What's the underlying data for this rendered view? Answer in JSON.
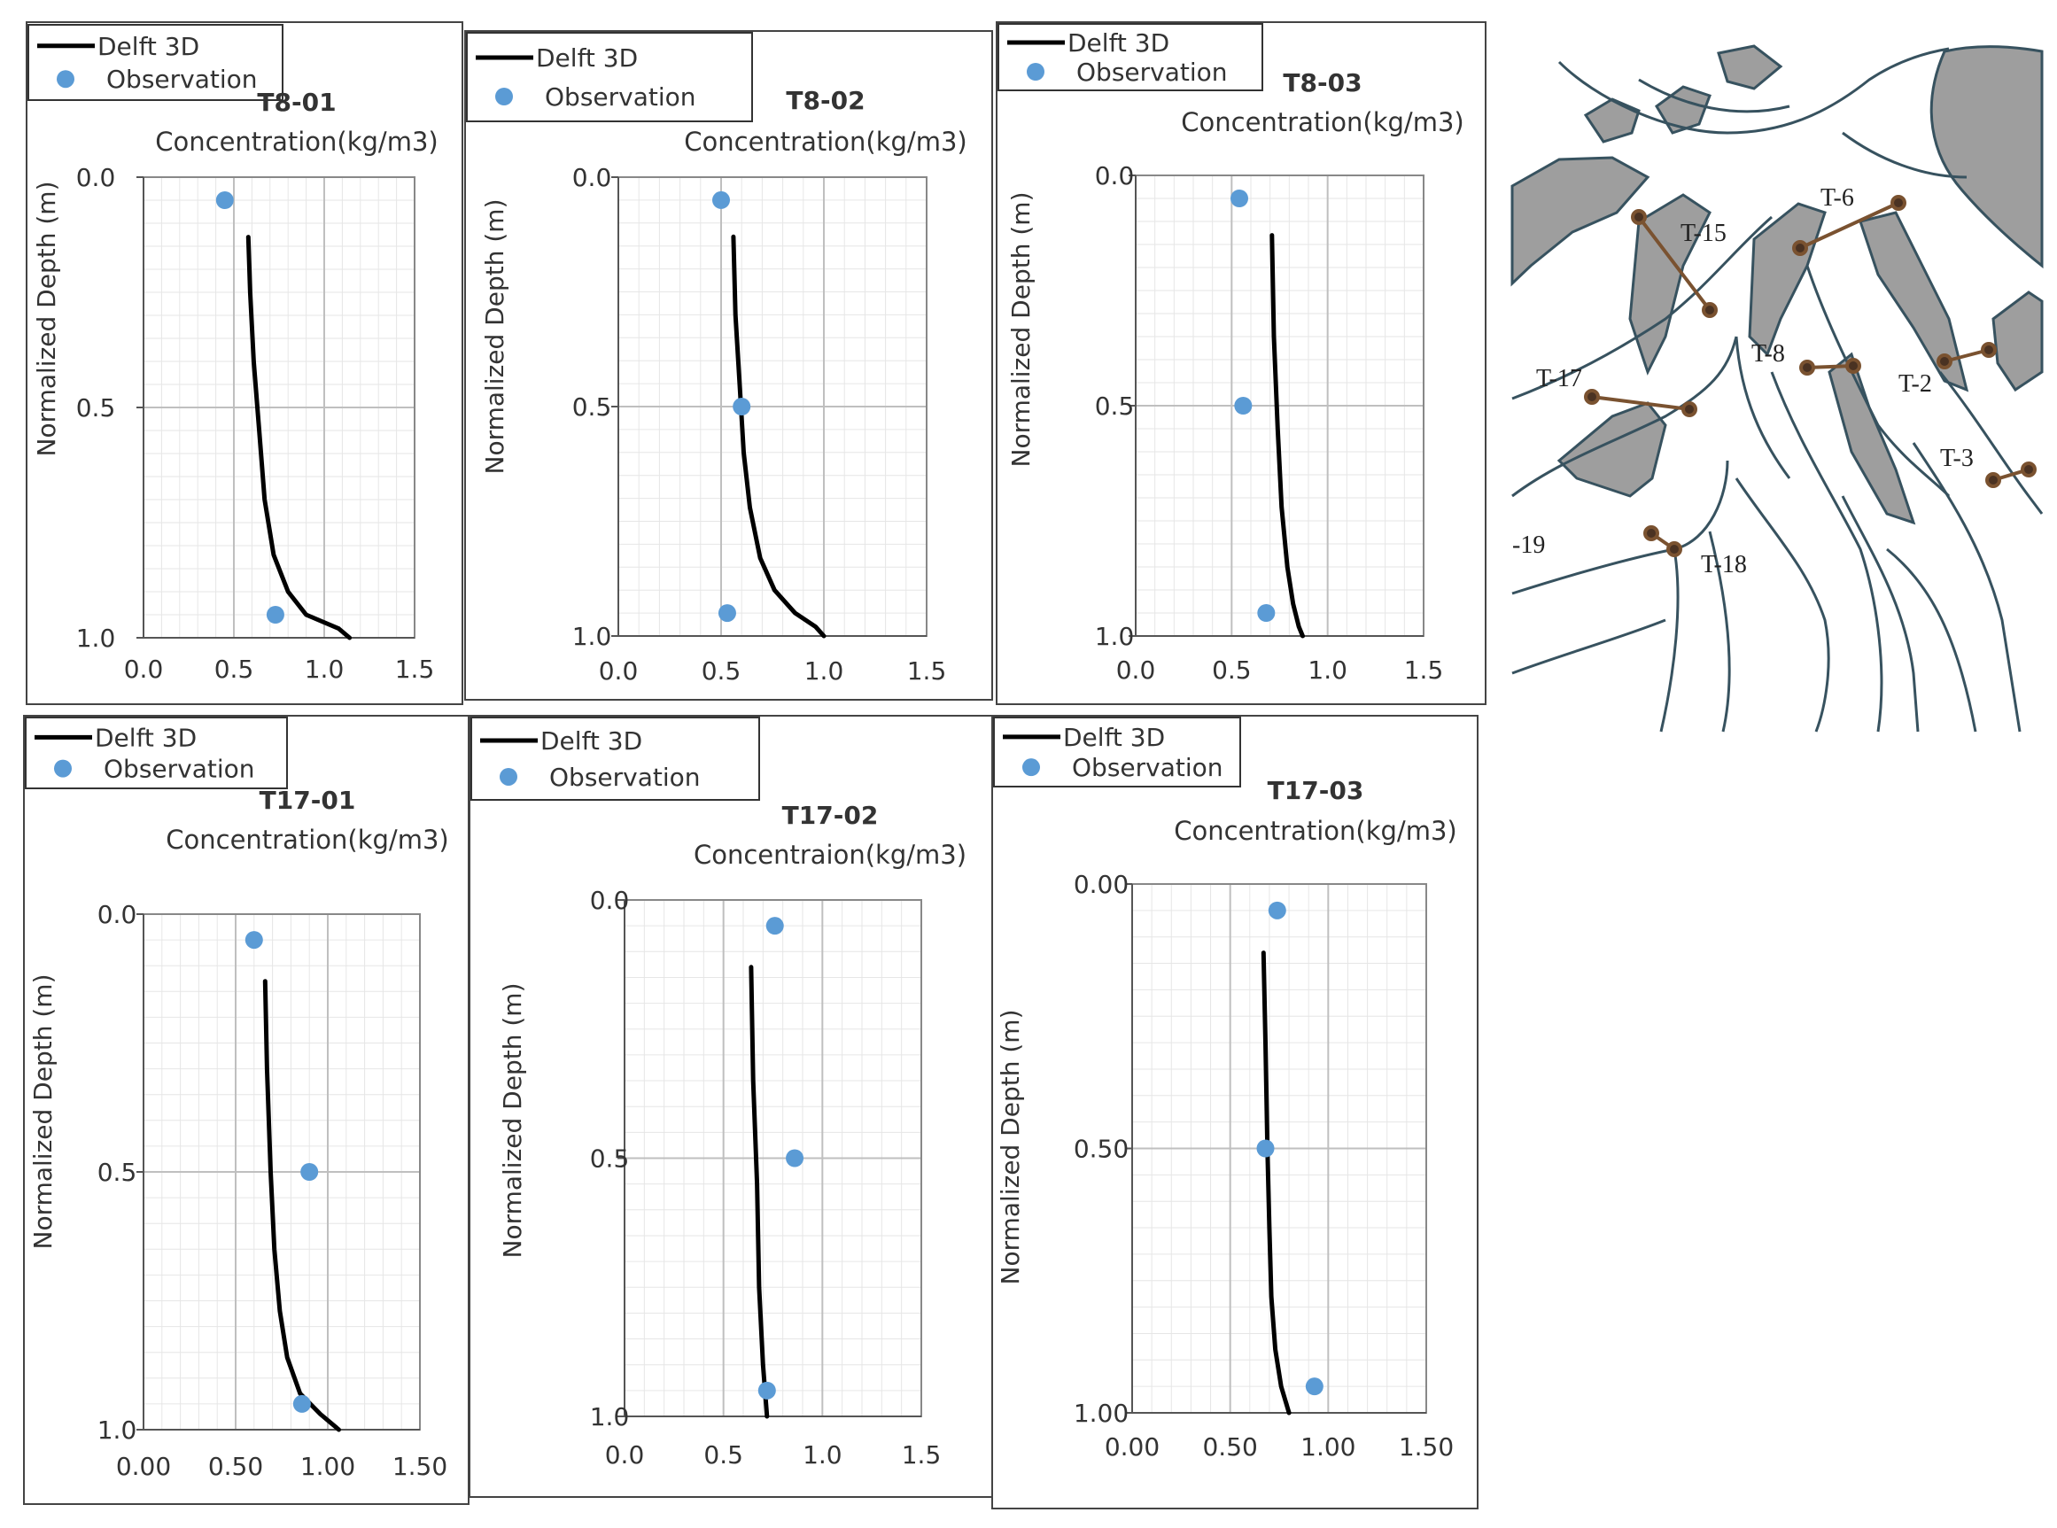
{
  "legend": {
    "model_label": "Delft 3D",
    "obs_label": "Observation"
  },
  "colors": {
    "model_line": "#000000",
    "observation": "#5b9bd5",
    "grid_major": "#bfbfbf",
    "grid_minor": "#e6e6e6",
    "land": "#9e9e9e",
    "channel_line": "#37525f",
    "transect": "#7a5230",
    "transect_node": "#4a3222"
  },
  "chart_data": [
    {
      "type": "line",
      "id": "T8-01",
      "title": "T8-01",
      "xlabel": "Concentration(kg/m3)",
      "ylabel": "Normalized Depth (m)",
      "xlim": [
        0,
        1.5
      ],
      "ylim": [
        0,
        1
      ],
      "y_inverted": true,
      "x_ticks": [
        "0.0",
        "0.5",
        "1.0",
        "1.5"
      ],
      "y_ticks": [
        "0.0",
        "0.5",
        "1.0"
      ],
      "series": [
        {
          "name": "Delft 3D",
          "points": [
            [
              0.58,
              0.13
            ],
            [
              0.59,
              0.25
            ],
            [
              0.61,
              0.4
            ],
            [
              0.64,
              0.55
            ],
            [
              0.67,
              0.7
            ],
            [
              0.72,
              0.82
            ],
            [
              0.8,
              0.9
            ],
            [
              0.9,
              0.95
            ],
            [
              1.08,
              0.98
            ],
            [
              1.14,
              1.0
            ]
          ]
        },
        {
          "name": "Observation",
          "points": [
            [
              0.45,
              0.05
            ],
            [
              0.73,
              0.95
            ]
          ]
        }
      ]
    },
    {
      "type": "line",
      "id": "T8-02",
      "title": "T8-02",
      "xlabel": "Concentration(kg/m3)",
      "ylabel": "Normalized Depth (m)",
      "xlim": [
        0,
        1.5
      ],
      "ylim": [
        0,
        1
      ],
      "y_inverted": true,
      "x_ticks": [
        "0.0",
        "0.5",
        "1.0",
        "1.5"
      ],
      "y_ticks": [
        "0.0",
        "0.5",
        "1.0"
      ],
      "series": [
        {
          "name": "Delft 3D",
          "points": [
            [
              0.56,
              0.13
            ],
            [
              0.57,
              0.3
            ],
            [
              0.59,
              0.45
            ],
            [
              0.61,
              0.6
            ],
            [
              0.64,
              0.72
            ],
            [
              0.69,
              0.83
            ],
            [
              0.76,
              0.9
            ],
            [
              0.86,
              0.95
            ],
            [
              0.96,
              0.98
            ],
            [
              1.0,
              1.0
            ]
          ]
        },
        {
          "name": "Observation",
          "points": [
            [
              0.5,
              0.05
            ],
            [
              0.6,
              0.5
            ],
            [
              0.53,
              0.95
            ]
          ]
        }
      ]
    },
    {
      "type": "line",
      "id": "T8-03",
      "title": "T8-03",
      "xlabel": "Concentration(kg/m3)",
      "ylabel": "Normalized Depth (m)",
      "xlim": [
        0,
        1.5
      ],
      "ylim": [
        0,
        1
      ],
      "y_inverted": true,
      "x_ticks": [
        "0.0",
        "0.5",
        "1.0",
        "1.5"
      ],
      "y_ticks": [
        "0.0",
        "0.5",
        "1.0"
      ],
      "series": [
        {
          "name": "Delft 3D",
          "points": [
            [
              0.71,
              0.13
            ],
            [
              0.72,
              0.35
            ],
            [
              0.74,
              0.55
            ],
            [
              0.76,
              0.72
            ],
            [
              0.79,
              0.85
            ],
            [
              0.82,
              0.93
            ],
            [
              0.85,
              0.98
            ],
            [
              0.87,
              1.0
            ]
          ]
        },
        {
          "name": "Observation",
          "points": [
            [
              0.54,
              0.05
            ],
            [
              0.56,
              0.5
            ],
            [
              0.68,
              0.95
            ]
          ]
        }
      ]
    },
    {
      "type": "line",
      "id": "T17-01",
      "title": "T17-01",
      "xlabel": "Concentration(kg/m3)",
      "ylabel": "Normalized Depth (m)",
      "xlim": [
        0,
        1.5
      ],
      "ylim": [
        0,
        1
      ],
      "y_inverted": true,
      "x_ticks": [
        "0.00",
        "0.50",
        "1.00",
        "1.50"
      ],
      "y_ticks": [
        "0.0",
        "0.5",
        "1.0"
      ],
      "series": [
        {
          "name": "Delft 3D",
          "points": [
            [
              0.66,
              0.13
            ],
            [
              0.67,
              0.3
            ],
            [
              0.69,
              0.5
            ],
            [
              0.71,
              0.65
            ],
            [
              0.74,
              0.77
            ],
            [
              0.78,
              0.86
            ],
            [
              0.85,
              0.93
            ],
            [
              0.96,
              0.97
            ],
            [
              1.06,
              1.0
            ]
          ]
        },
        {
          "name": "Observation",
          "points": [
            [
              0.6,
              0.05
            ],
            [
              0.9,
              0.5
            ],
            [
              0.86,
              0.95
            ]
          ]
        }
      ]
    },
    {
      "type": "line",
      "id": "T17-02",
      "title": "T17-02",
      "xlabel": "Concentraion(kg/m3)",
      "ylabel": "Normalized Depth (m)",
      "xlim": [
        0,
        1.5
      ],
      "ylim": [
        0,
        1
      ],
      "y_inverted": true,
      "x_ticks": [
        "0.0",
        "0.5",
        "1.0",
        "1.5"
      ],
      "y_ticks": [
        "0.0",
        "0.5",
        "1.0"
      ],
      "series": [
        {
          "name": "Delft 3D",
          "points": [
            [
              0.64,
              0.13
            ],
            [
              0.65,
              0.35
            ],
            [
              0.67,
              0.55
            ],
            [
              0.68,
              0.75
            ],
            [
              0.7,
              0.9
            ],
            [
              0.72,
              1.0
            ]
          ]
        },
        {
          "name": "Observation",
          "points": [
            [
              0.76,
              0.05
            ],
            [
              0.86,
              0.5
            ],
            [
              0.72,
              0.95
            ]
          ]
        }
      ]
    },
    {
      "type": "line",
      "id": "T17-03",
      "title": "T17-03",
      "xlabel": "Concentration(kg/m3)",
      "ylabel": "Normalized Depth (m)",
      "xlim": [
        0,
        1.5
      ],
      "ylim": [
        0,
        1
      ],
      "y_inverted": true,
      "x_ticks": [
        "0.00",
        "0.50",
        "1.00",
        "1.50"
      ],
      "y_ticks": [
        "0.00",
        "0.50",
        "1.00"
      ],
      "series": [
        {
          "name": "Delft 3D",
          "points": [
            [
              0.67,
              0.13
            ],
            [
              0.68,
              0.3
            ],
            [
              0.69,
              0.5
            ],
            [
              0.7,
              0.65
            ],
            [
              0.71,
              0.78
            ],
            [
              0.73,
              0.88
            ],
            [
              0.76,
              0.95
            ],
            [
              0.8,
              1.0
            ]
          ]
        },
        {
          "name": "Observation",
          "points": [
            [
              0.74,
              0.05
            ],
            [
              0.68,
              0.5
            ],
            [
              0.93,
              0.95
            ]
          ]
        }
      ]
    }
  ],
  "map": {
    "transect_labels": [
      "T-6",
      "T-15",
      "T-8",
      "T-2",
      "T-17",
      "T-3",
      "-19",
      "T-18"
    ]
  }
}
